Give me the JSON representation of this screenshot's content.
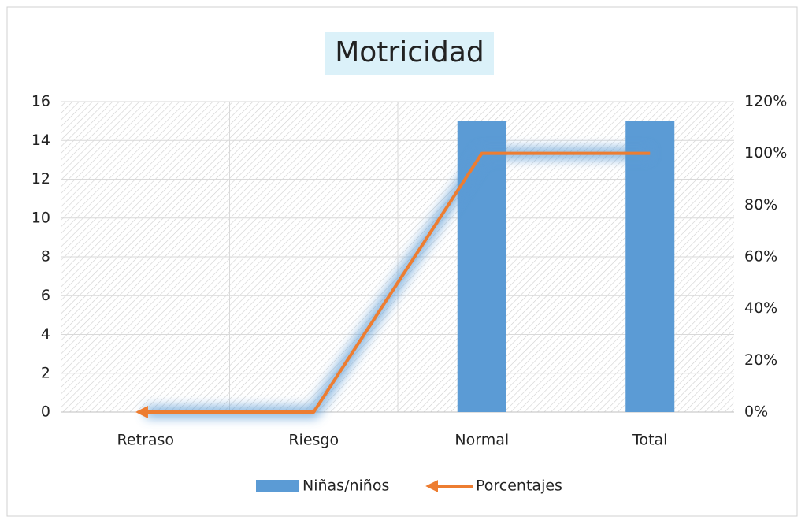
{
  "chart_data": {
    "type": "combo",
    "title": "Motricidad",
    "categories": [
      "Retraso",
      "Riesgo",
      "Normal",
      "Total"
    ],
    "series": [
      {
        "name": "Niñas/niños",
        "type": "bar",
        "color": "#5b9bd5",
        "values": [
          0,
          0,
          15,
          15
        ]
      },
      {
        "name": "Porcentajes",
        "type": "line",
        "color": "#ed7d31",
        "axis": "y2",
        "values": [
          0,
          0,
          100,
          100
        ]
      }
    ],
    "ylim": [
      0,
      16
    ],
    "yticks": [
      0,
      2,
      4,
      6,
      8,
      10,
      12,
      14,
      16
    ],
    "y2lim": [
      0,
      120
    ],
    "y2ticks": [
      {
        "value": 0,
        "label": "0%"
      },
      {
        "value": 20,
        "label": "20%"
      },
      {
        "value": 40,
        "label": "40%"
      },
      {
        "value": 60,
        "label": "60%"
      },
      {
        "value": 80,
        "label": "80%"
      },
      {
        "value": 100,
        "label": "100%"
      },
      {
        "value": 120,
        "label": "120%"
      }
    ],
    "grid": true,
    "legend": "bottom"
  }
}
